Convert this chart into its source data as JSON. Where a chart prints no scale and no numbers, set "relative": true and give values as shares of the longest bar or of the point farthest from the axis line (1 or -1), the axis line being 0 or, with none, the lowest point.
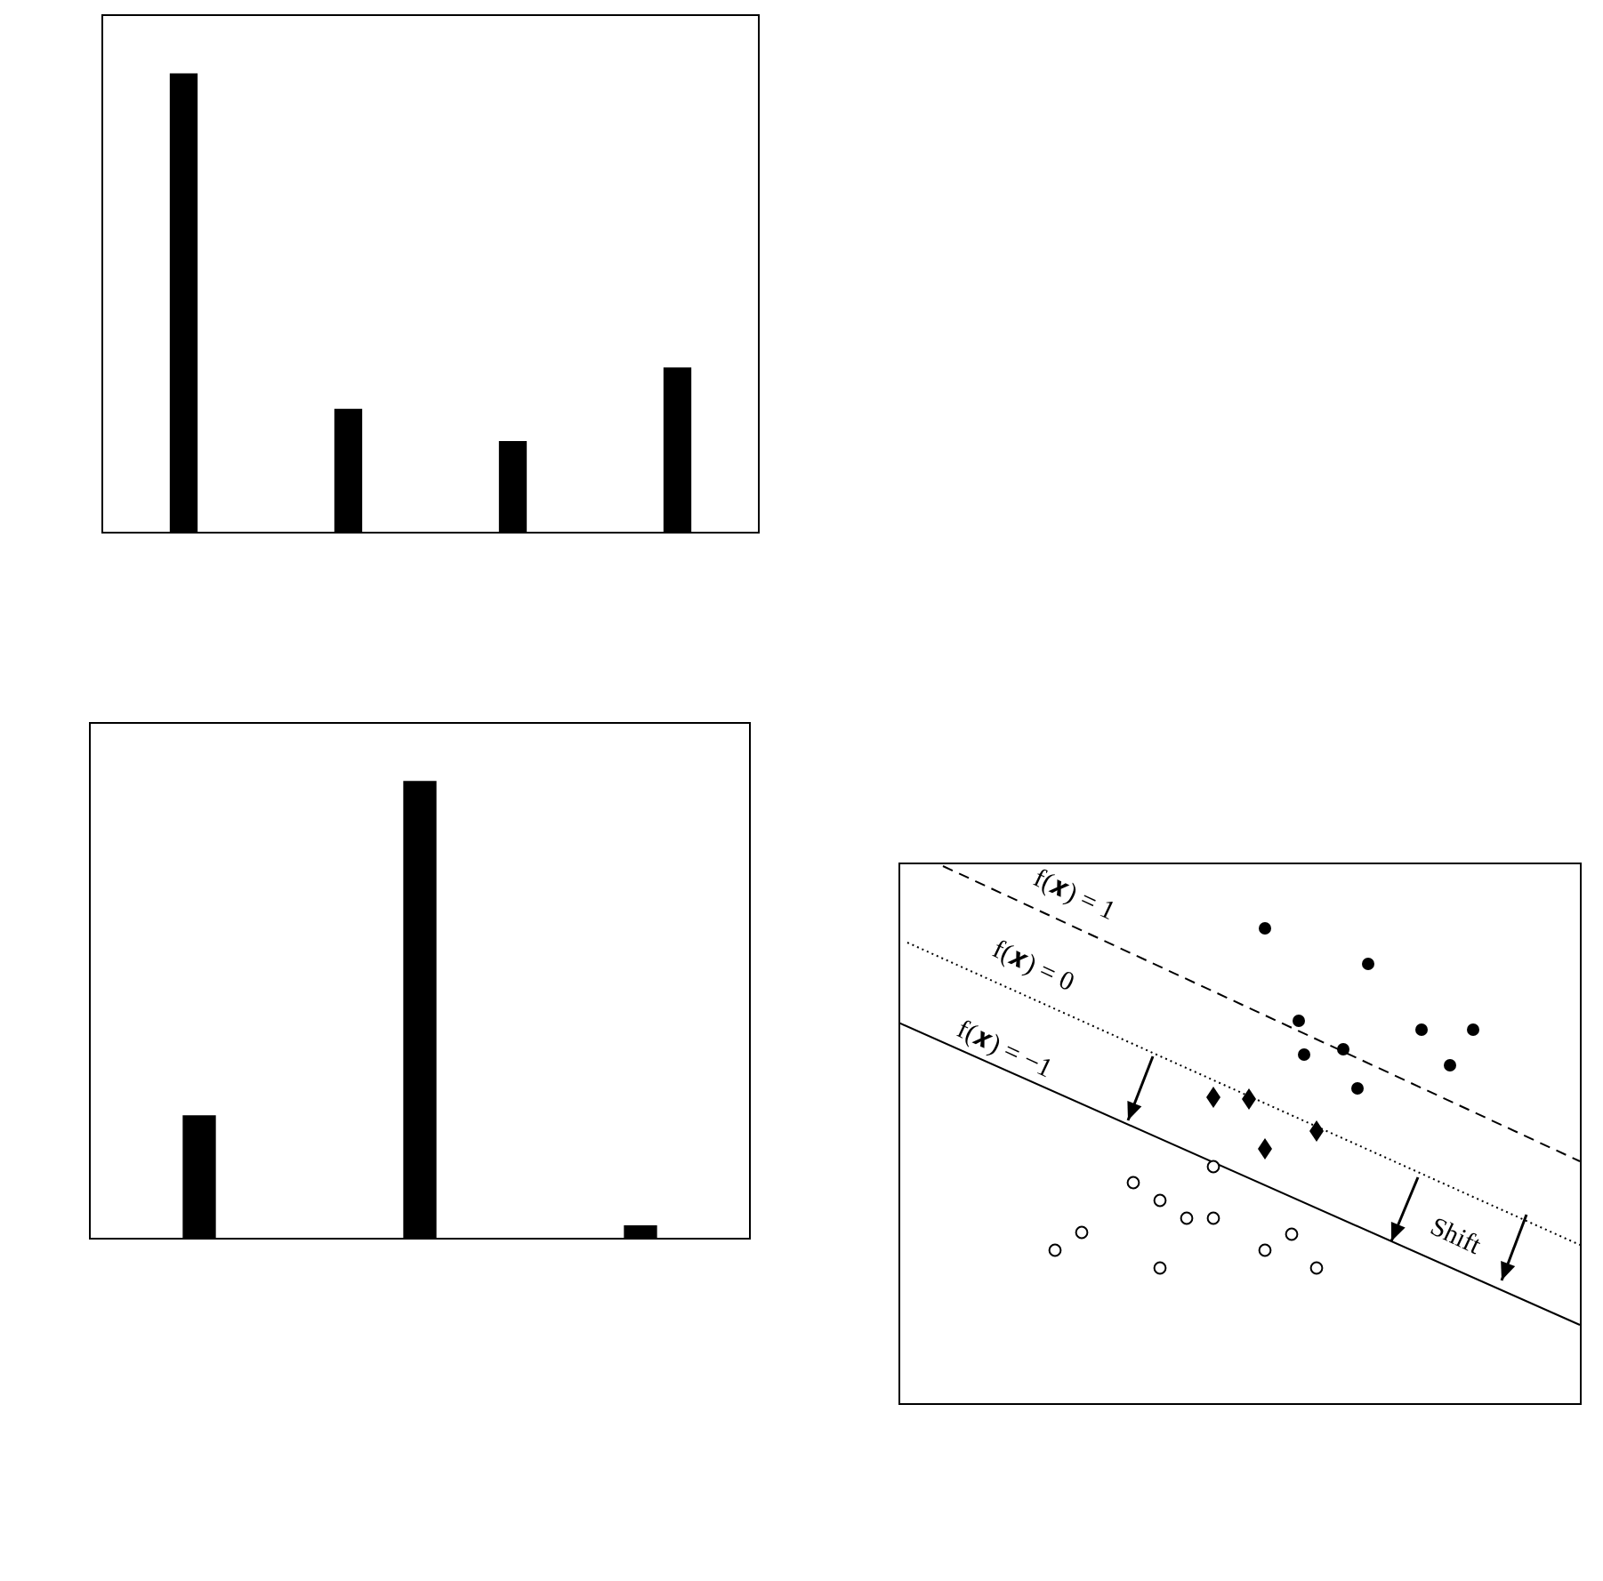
{
  "chart_data": [
    {
      "type": "bar",
      "relative": true,
      "categories": [
        null,
        null,
        null,
        null
      ],
      "values": [
        1,
        0.27,
        0.2,
        0.36
      ],
      "color": "#000000"
    },
    {
      "type": "bar",
      "relative": true,
      "categories": [
        null,
        null,
        null
      ],
      "values": [
        0.27,
        1,
        0.03
      ],
      "color": "#000000"
    },
    {
      "type": "other",
      "annotations": [
        "f(𝒙) = 1",
        "f(𝒙) = 0",
        "f(𝒙) = −1",
        "Shift"
      ]
    }
  ]
}
